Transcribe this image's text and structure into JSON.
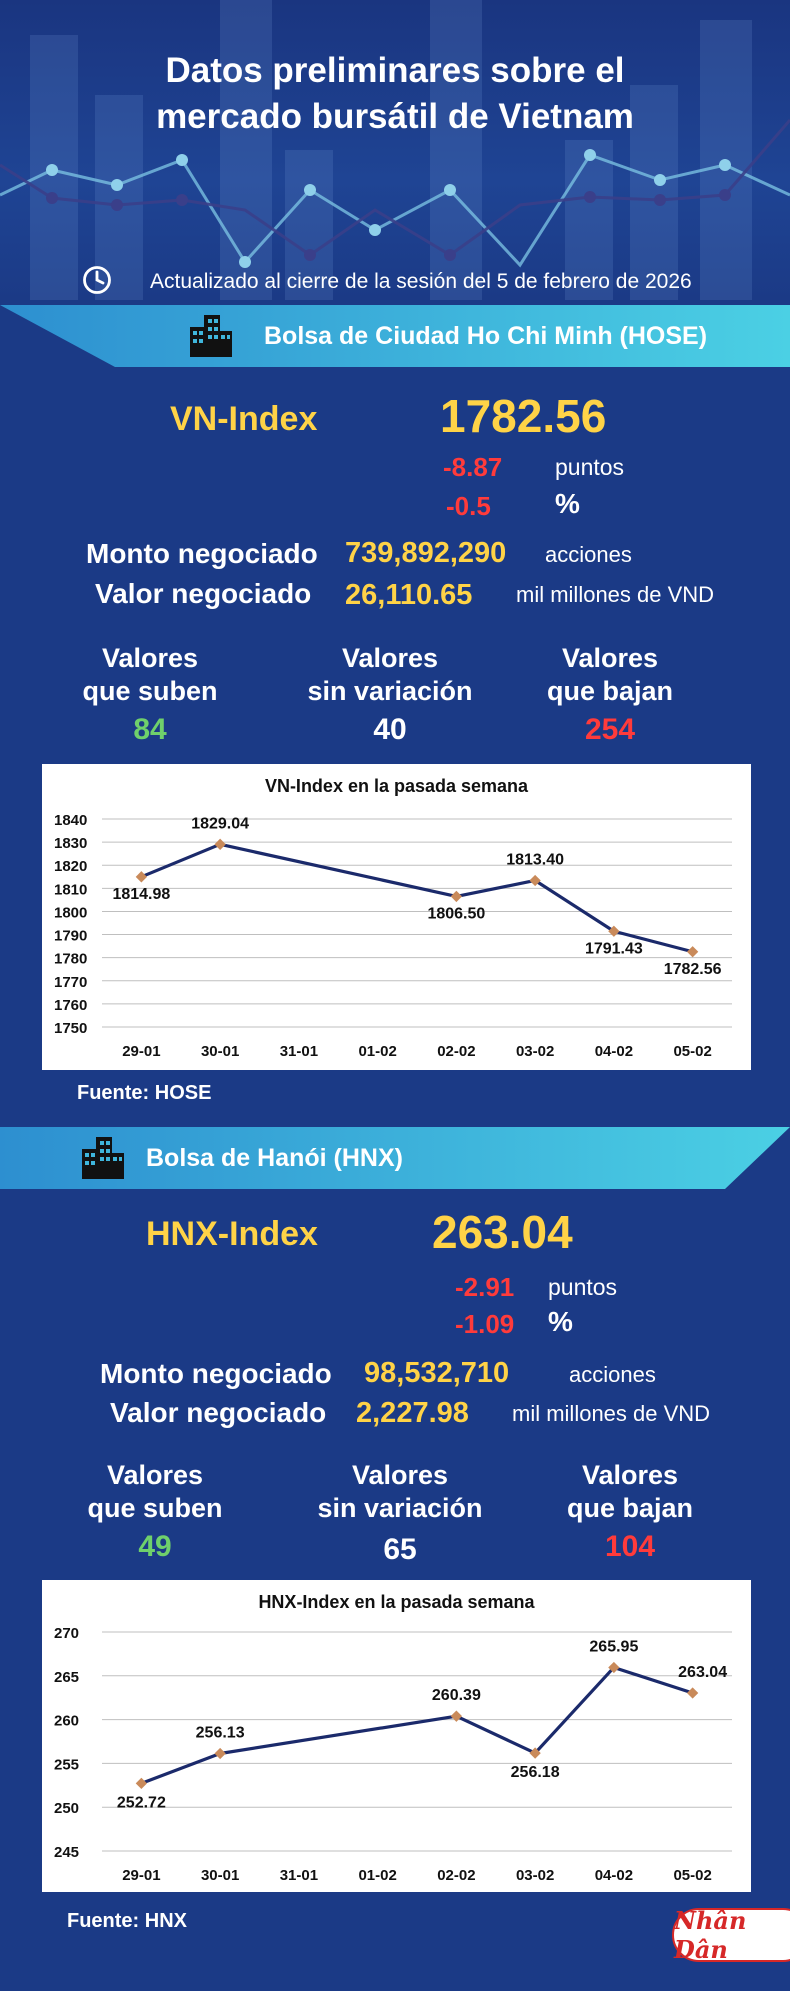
{
  "header": {
    "title_line1": "Datos preliminares sobre el",
    "title_line2": "mercado bursátil de Vietnam",
    "updated": "Actualizado al cierre de la sesión del 5 de febrero de 2026"
  },
  "colors": {
    "background": "#1b3a86",
    "accent_yellow": "#ffd347",
    "negative_red": "#ff3b3b",
    "positive_green": "#6fd06b",
    "banner_cyan": "#3fc3e0"
  },
  "hose": {
    "exchange": "Bolsa de Ciudad Ho Chi Minh (HOSE)",
    "index_name": "VN-Index",
    "index_value": "1782.56",
    "change_points": "-8.87",
    "points_label": "puntos",
    "change_pct": "-0.5",
    "pct_label": "%",
    "volume_label": "Monto negociado",
    "volume_value": "739,892,290",
    "volume_unit": "acciones",
    "value_label": "Valor negociado",
    "value_value": "26,110.65",
    "value_unit": "mil millones de VND",
    "up_label_1": "Valores",
    "up_label_2": "que suben",
    "up_count": "84",
    "flat_label_1": "Valores",
    "flat_label_2": "sin variación",
    "flat_count": "40",
    "down_label_1": "Valores",
    "down_label_2": "que bajan",
    "down_count": "254",
    "source": "Fuente: HOSE"
  },
  "hnx": {
    "exchange": "Bolsa de Hanói (HNX)",
    "index_name": "HNX-Index",
    "index_value": "263.04",
    "change_points": "-2.91",
    "points_label": "puntos",
    "change_pct": "-1.09",
    "pct_label": "%",
    "volume_label": "Monto negociado",
    "volume_value": "98,532,710",
    "volume_unit": "acciones",
    "value_label": "Valor negociado",
    "value_value": "2,227.98",
    "value_unit": "mil millones de VND",
    "up_label_1": "Valores",
    "up_label_2": "que suben",
    "up_count": "49",
    "flat_label_1": "Valores",
    "flat_label_2": "sin variación",
    "flat_count": "65",
    "down_label_1": "Valores",
    "down_label_2": "que bajan",
    "down_count": "104",
    "source": "Fuente:  HNX"
  },
  "logo": {
    "text": "Nhân Dân"
  },
  "chart_data": [
    {
      "type": "line",
      "title": "VN-Index en la pasada semana",
      "categories": [
        "29-01",
        "30-01",
        "31-01",
        "01-02",
        "02-02",
        "03-02",
        "04-02",
        "05-02"
      ],
      "series": [
        {
          "values": [
            1814.98,
            1829.04,
            null,
            null,
            1806.5,
            1813.4,
            1791.43,
            1782.56
          ]
        }
      ],
      "data_labels": [
        "1814.98",
        "1829.04",
        "",
        "",
        "1806.50",
        "1813.40",
        "1791.43",
        "1782.56"
      ],
      "ylim": [
        1750,
        1840
      ],
      "yticks": [
        1750,
        1760,
        1770,
        1780,
        1790,
        1800,
        1810,
        1820,
        1830,
        1840
      ],
      "xlabel": "",
      "ylabel": "",
      "grid": true,
      "line_color": "#1b2a6b",
      "marker_color": "#c98a5a"
    },
    {
      "type": "line",
      "title": "HNX-Index en la pasada semana",
      "categories": [
        "29-01",
        "30-01",
        "31-01",
        "01-02",
        "02-02",
        "03-02",
        "04-02",
        "05-02"
      ],
      "series": [
        {
          "values": [
            252.72,
            256.13,
            null,
            null,
            260.39,
            256.18,
            265.95,
            263.04
          ]
        }
      ],
      "data_labels": [
        "252.72",
        "256.13",
        "",
        "",
        "260.39",
        "256.18",
        "265.95",
        "263.04"
      ],
      "ylim": [
        245,
        270
      ],
      "yticks": [
        245,
        250,
        255,
        260,
        265,
        270
      ],
      "xlabel": "",
      "ylabel": "",
      "grid": true,
      "line_color": "#1b2a6b",
      "marker_color": "#c98a5a"
    }
  ]
}
